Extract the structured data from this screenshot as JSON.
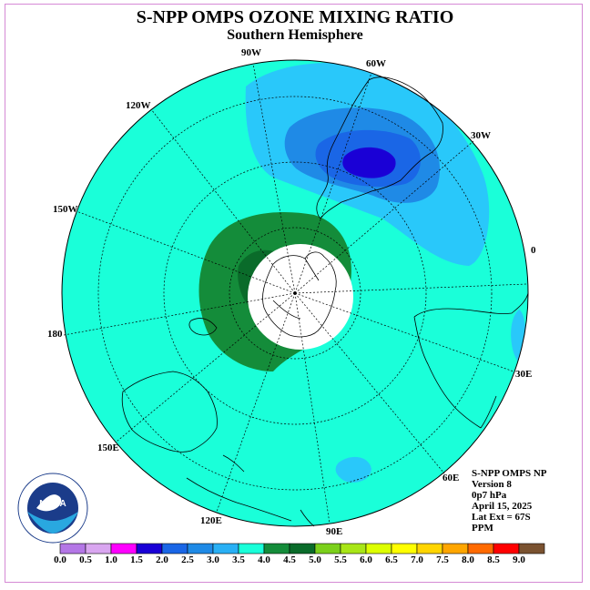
{
  "title": "S-NPP OMPS OZONE MIXING RATIO",
  "subtitle": "Southern Hemisphere",
  "lon_labels": [
    {
      "text": "90W"
    },
    {
      "text": "60W"
    },
    {
      "text": "30W"
    },
    {
      "text": "0"
    },
    {
      "text": "30E"
    },
    {
      "text": "60E"
    },
    {
      "text": "90E"
    },
    {
      "text": "120E"
    },
    {
      "text": "150E"
    },
    {
      "text": "180"
    },
    {
      "text": "150W"
    },
    {
      "text": "120W"
    }
  ],
  "info_lines": [
    "S-NPP OMPS NP",
    "Version 8",
    "0p7 hPa",
    "April 15, 2025",
    "Lat Ext = 67S",
    "PPM"
  ],
  "colorbar": {
    "ticks": [
      "0.0",
      "0.5",
      "1.0",
      "1.5",
      "2.0",
      "2.5",
      "3.0",
      "3.5",
      "4.0",
      "4.5",
      "5.0",
      "5.5",
      "6.0",
      "6.5",
      "7.0",
      "7.5",
      "8.0",
      "8.5",
      "9.0"
    ],
    "colors": [
      "#b477e6",
      "#d9a6f0",
      "#ff00ff",
      "#1a00d6",
      "#1a66e6",
      "#1f8ae6",
      "#29b0f5",
      "#1affd9",
      "#148c3a",
      "#0a6b2a",
      "#7bd01b",
      "#a8e617",
      "#ddff00",
      "#ffff00",
      "#ffd500",
      "#ffa600",
      "#ff6a00",
      "#ff0000",
      "#7a5230"
    ]
  },
  "logo": {
    "icon": "noaa-logo-icon",
    "text": "NOAA"
  },
  "colors": {
    "background_field": "#1affd9",
    "frame": "#d58ad5"
  }
}
